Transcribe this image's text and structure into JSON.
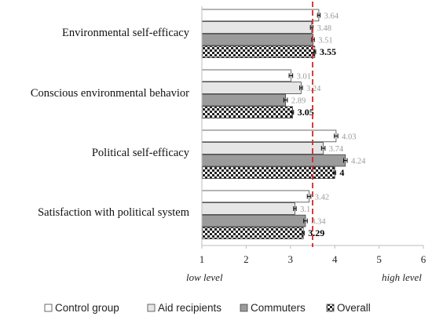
{
  "chart_data": {
    "type": "bar",
    "orientation": "horizontal",
    "categories": [
      "Environmental self-efficacy",
      "Conscious environmental behavior",
      "Political self-efficacy",
      "Satisfaction with political system"
    ],
    "series": [
      {
        "name": "Control group",
        "values": [
          3.64,
          3.01,
          4.03,
          3.42
        ],
        "value_labels": [
          "3.64",
          "3.01",
          "4.03",
          "3.42"
        ],
        "error": [
          0.03,
          0.04,
          0.04,
          0.04
        ],
        "color": "#ffffff",
        "label_color": "#9a9a9a"
      },
      {
        "name": "Aid recipients",
        "values": [
          3.48,
          3.24,
          3.74,
          3.1
        ],
        "value_labels": [
          "3.48",
          "3.24",
          "3.74",
          "3.1"
        ],
        "error": [
          0.03,
          0.03,
          0.04,
          0.03
        ],
        "color": "#e6e6e6",
        "label_color": "#9a9a9a"
      },
      {
        "name": "Commuters",
        "values": [
          3.51,
          2.89,
          4.24,
          3.34
        ],
        "value_labels": [
          "3.51",
          "2.89",
          "4.24",
          "3.34"
        ],
        "error": [
          0.03,
          0.04,
          0.04,
          0.04
        ],
        "color": "#9b9b9b",
        "label_color": "#9a9a9a"
      },
      {
        "name": "Overall",
        "values": [
          3.55,
          3.05,
          4.0,
          3.29
        ],
        "value_labels": [
          "3.55",
          "3.05",
          "4",
          "3.29"
        ],
        "error": [
          0.02,
          0.02,
          0.02,
          0.02
        ],
        "pattern": "checkerboard",
        "label_color": "#000000"
      }
    ],
    "xlim": [
      1,
      6
    ],
    "xticks": [
      "1",
      "2",
      "3",
      "4",
      "5",
      "6"
    ],
    "reference_line": {
      "value": 3.5,
      "color": "#d62728",
      "style": "dashed"
    },
    "axis_annotations": {
      "low": "low level",
      "high": "high level"
    },
    "legend_position": "bottom",
    "grid": false
  }
}
